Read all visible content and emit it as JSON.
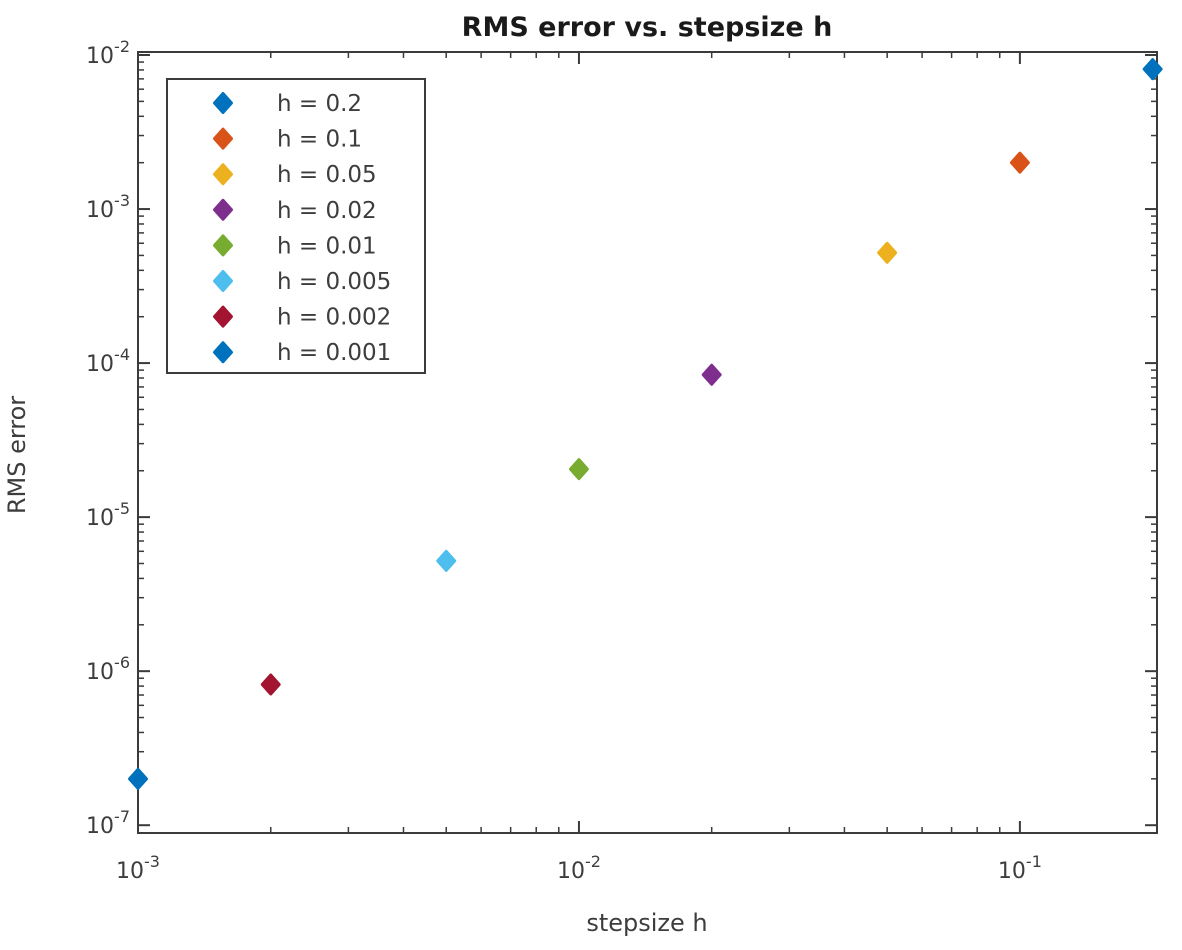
{
  "figure_title": "RMS error vs. stepsize h",
  "chart_data": {
    "type": "scatter",
    "title": "RMS error vs. stepsize h",
    "xlabel": "stepsize h",
    "ylabel": "RMS error",
    "x_scale": "log",
    "y_scale": "log",
    "grid": false,
    "xlim": [
      0.001,
      0.2046
    ],
    "ylim": [
      8.9e-08,
      0.01046
    ],
    "x_ticks": [
      {
        "value": 0.001,
        "label": "10^-3"
      },
      {
        "value": 0.01,
        "label": "10^-2"
      },
      {
        "value": 0.1,
        "label": "10^-1"
      }
    ],
    "y_ticks": [
      {
        "value": 0.01,
        "label": "10^-2"
      },
      {
        "value": 0.001,
        "label": "10^-3"
      },
      {
        "value": 0.0001,
        "label": "10^-4"
      },
      {
        "value": 1e-05,
        "label": "10^-5"
      },
      {
        "value": 1e-06,
        "label": "10^-6"
      },
      {
        "value": 1e-07,
        "label": "10^-7"
      }
    ],
    "legend": {
      "position": "upper-left",
      "border": true
    },
    "marker": "diamond",
    "series": [
      {
        "name": "h = 0.2",
        "h": 0.2,
        "color": "#0072BD",
        "points": [
          {
            "x": 0.2,
            "y": 0.0081
          }
        ]
      },
      {
        "name": "h = 0.1",
        "h": 0.1,
        "color": "#D95319",
        "points": [
          {
            "x": 0.1,
            "y": 0.002
          }
        ]
      },
      {
        "name": "h = 0.05",
        "h": 0.05,
        "color": "#EDB120",
        "points": [
          {
            "x": 0.05,
            "y": 0.00052
          }
        ]
      },
      {
        "name": "h = 0.02",
        "h": 0.02,
        "color": "#7E2F8E",
        "points": [
          {
            "x": 0.02,
            "y": 8.4e-05
          }
        ]
      },
      {
        "name": "h = 0.01",
        "h": 0.01,
        "color": "#77AC30",
        "points": [
          {
            "x": 0.01,
            "y": 2.05e-05
          }
        ]
      },
      {
        "name": "h = 0.005",
        "h": 0.005,
        "color": "#4DBEEE",
        "points": [
          {
            "x": 0.005,
            "y": 5.2e-06
          }
        ]
      },
      {
        "name": "h = 0.002",
        "h": 0.002,
        "color": "#A2142F",
        "points": [
          {
            "x": 0.002,
            "y": 8.2e-07
          }
        ]
      },
      {
        "name": "h = 0.001",
        "h": 0.001,
        "color": "#0072BD",
        "points": [
          {
            "x": 0.001,
            "y": 2e-07
          }
        ]
      }
    ]
  },
  "colors": {
    "axis": "#3b3b3b",
    "tick_text": "#3d3d3d",
    "title_text": "#1a1a1a",
    "background": "#ffffff"
  }
}
